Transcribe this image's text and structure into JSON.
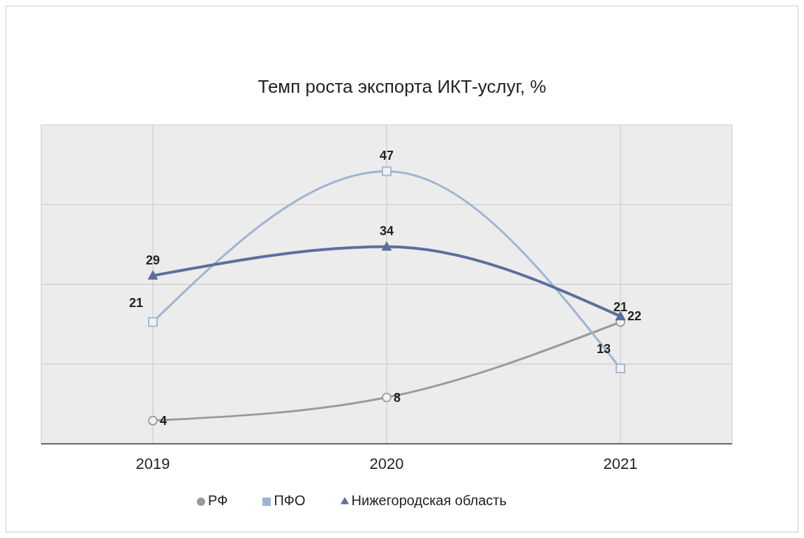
{
  "chart_data": {
    "type": "line",
    "title": "Темп роста экспорта ИКТ-услуг, %",
    "categories": [
      "2019",
      "2020",
      "2021"
    ],
    "series": [
      {
        "name": "РФ",
        "color": "#9a9a9a",
        "marker": "circle",
        "values": [
          4,
          8,
          21
        ]
      },
      {
        "name": "ПФО",
        "color": "#9fb4d2",
        "marker": "square",
        "values": [
          21,
          47,
          13
        ]
      },
      {
        "name": "Нижегородская область",
        "color": "#5b6f9e",
        "marker": "triangle",
        "values": [
          29,
          34,
          22
        ]
      }
    ],
    "ylim": [
      0,
      55
    ],
    "tick_labels": "x",
    "grid": true,
    "legend": "bottom",
    "data_labels": true,
    "line_style": "solid"
  }
}
